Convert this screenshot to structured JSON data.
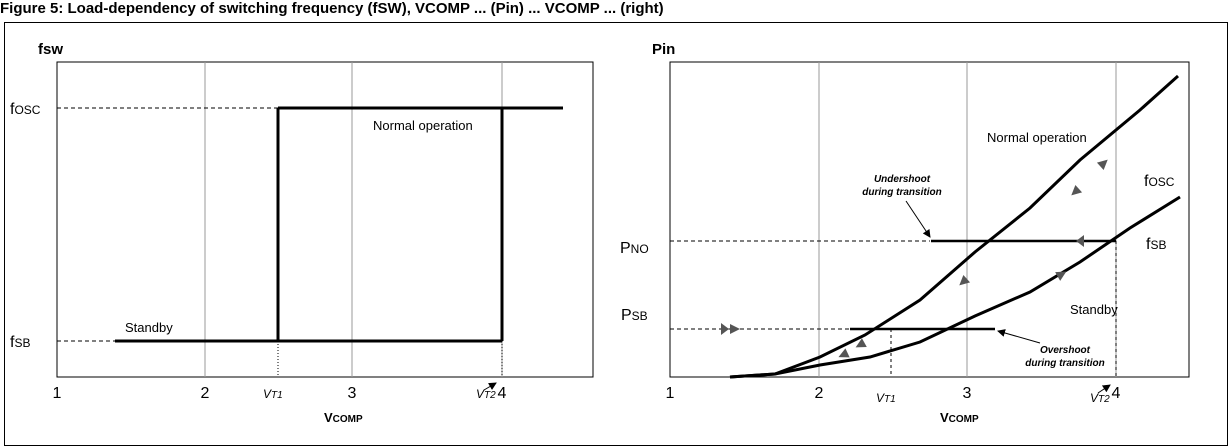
{
  "caption": "Figure 5: Load-dependency of switching frequency (fSW), VCOMP ... (Pin) ... VCOMP ... (right)",
  "left_plot": {
    "y_title": "fsw",
    "y_labels": [
      {
        "main": "f",
        "sub": "OSC"
      },
      {
        "main": "f",
        "sub": "SB"
      }
    ],
    "x_ticks": [
      "1",
      "2",
      "3",
      "4"
    ],
    "vt1": {
      "main": "V",
      "sub": "T1"
    },
    "vt2": {
      "main": "V",
      "sub": "T2"
    },
    "x_title": {
      "main": "V",
      "sub": "COMP"
    },
    "label_normal": "Normal operation",
    "label_standby": "Standby"
  },
  "right_plot": {
    "y_title": "Pin",
    "y_labels": [
      {
        "main": "P",
        "sub": "NO"
      },
      {
        "main": "P",
        "sub": "SB"
      }
    ],
    "x_ticks": [
      "1",
      "2",
      "3",
      "4"
    ],
    "vt1": {
      "main": "V",
      "sub": "T1"
    },
    "vt2": {
      "main": "V",
      "sub": "T2"
    },
    "x_title": {
      "main": "V",
      "sub": "COMP"
    },
    "label_normal": "Normal operation",
    "label_standby": "Standby",
    "curve_fosc": {
      "main": "f",
      "sub": "OSC"
    },
    "curve_fsb": {
      "main": "f",
      "sub": "SB"
    },
    "undershoot": [
      "Undershoot",
      "during transition"
    ],
    "overshoot": [
      "Overshoot",
      "during transition"
    ]
  }
}
